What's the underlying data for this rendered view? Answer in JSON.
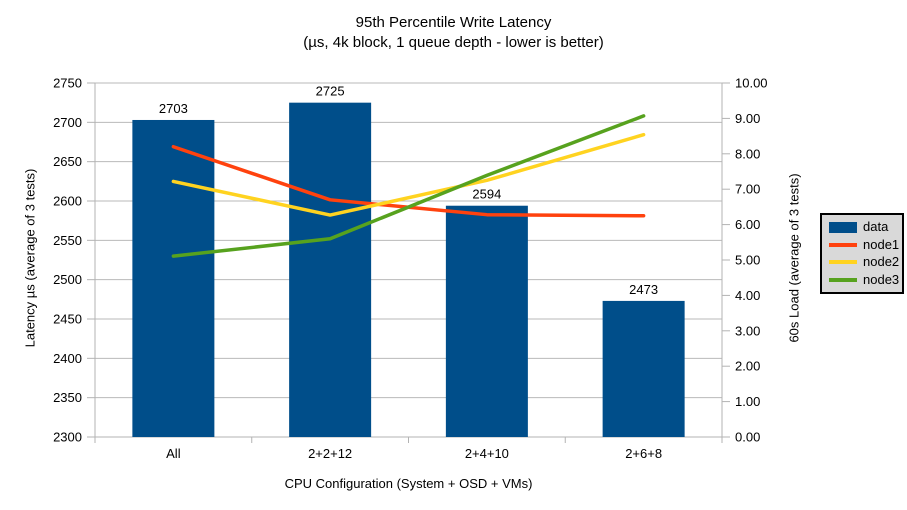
{
  "chart_data": {
    "type": "bar",
    "subtype": "combo-bar-line-dual-axis",
    "title_line1": "95th Percentile Write Latency",
    "title_line2": "(µs, 4k block, 1 queue depth - lower is better)",
    "categories": [
      "All",
      "2+2+12",
      "2+4+10",
      "2+6+8"
    ],
    "bar_series": {
      "name": "data",
      "axis": "left",
      "values": [
        2703,
        2725,
        2594,
        2473
      ],
      "data_labels": [
        "2703",
        "2725",
        "2594",
        "2473"
      ],
      "color": "#004e8a"
    },
    "line_series": [
      {
        "name": "node1",
        "axis": "right",
        "values": [
          8.2,
          6.7,
          6.28,
          6.25
        ],
        "color": "#ff420e"
      },
      {
        "name": "node2",
        "axis": "right",
        "values": [
          7.22,
          6.27,
          7.25,
          8.54
        ],
        "color": "#ffd320"
      },
      {
        "name": "node3",
        "axis": "right",
        "values": [
          5.11,
          5.6,
          7.39,
          9.07
        ],
        "color": "#57a21e"
      }
    ],
    "left_axis": {
      "title": "Latency µs (average of 3 tests)",
      "min": 2300,
      "max": 2750,
      "step": 50
    },
    "right_axis": {
      "title": "60s Load (average of 3 tests)",
      "min": 0,
      "max": 10,
      "step": 1,
      "decimals": 2
    },
    "xlabel": "CPU Configuration (System + OSD + VMs)",
    "legend": {
      "position": "right",
      "entries": [
        "data",
        "node1",
        "node2",
        "node3"
      ]
    },
    "grid": "horizontal-major-left-axis",
    "colors": {
      "background": "#ffffff",
      "grid_line": "#b9b9b9",
      "axis_line": "#b3b3b3",
      "text": "#000000",
      "legend_background": "#d9d9d9",
      "legend_border": "#000000"
    }
  }
}
